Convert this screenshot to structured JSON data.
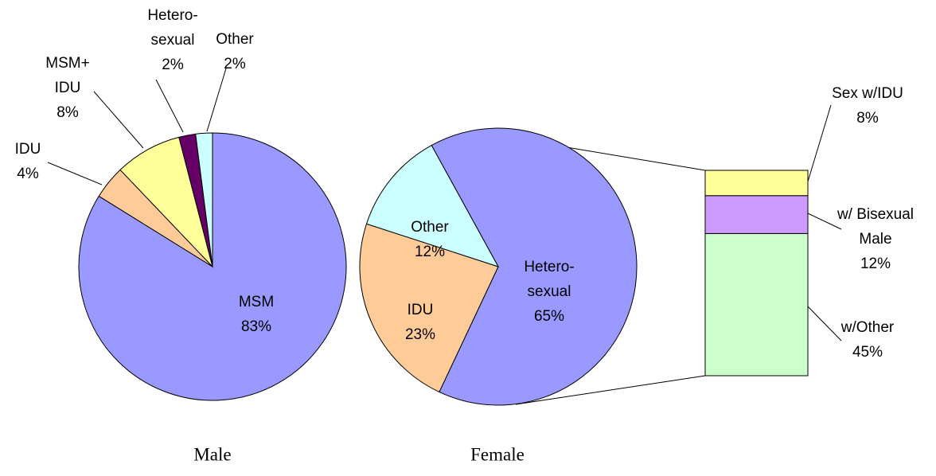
{
  "chart_data": [
    {
      "type": "pie",
      "title": "Male",
      "categories": [
        "MSM",
        "IDU",
        "MSM+\nIDU",
        "Hetero-\nsexual",
        "Other"
      ],
      "values": [
        83,
        4,
        8,
        2,
        2
      ],
      "value_labels": [
        "83%",
        "4%",
        "8%",
        "2%",
        "2%"
      ],
      "colors": [
        "#9999ff",
        "#ffcc99",
        "#ffff99",
        "#660066",
        "#ccffff"
      ]
    },
    {
      "type": "pie",
      "title": "Female",
      "categories": [
        "Hetero-\nsexual",
        "IDU",
        "Other"
      ],
      "values": [
        65,
        23,
        12
      ],
      "value_labels": [
        "65%",
        "23%",
        "12%"
      ],
      "colors": [
        "#9999ff",
        "#ffcc99",
        "#ccffff"
      ]
    },
    {
      "type": "stacked_bar",
      "categories": [
        "w/Other",
        "w/ Bisexual\nMale",
        "Sex w/IDU"
      ],
      "values": [
        45,
        12,
        8
      ],
      "value_labels": [
        "45%",
        "12%",
        "8%"
      ],
      "colors": [
        "#ccffcc",
        "#cc99ff",
        "#ffff99"
      ]
    }
  ]
}
